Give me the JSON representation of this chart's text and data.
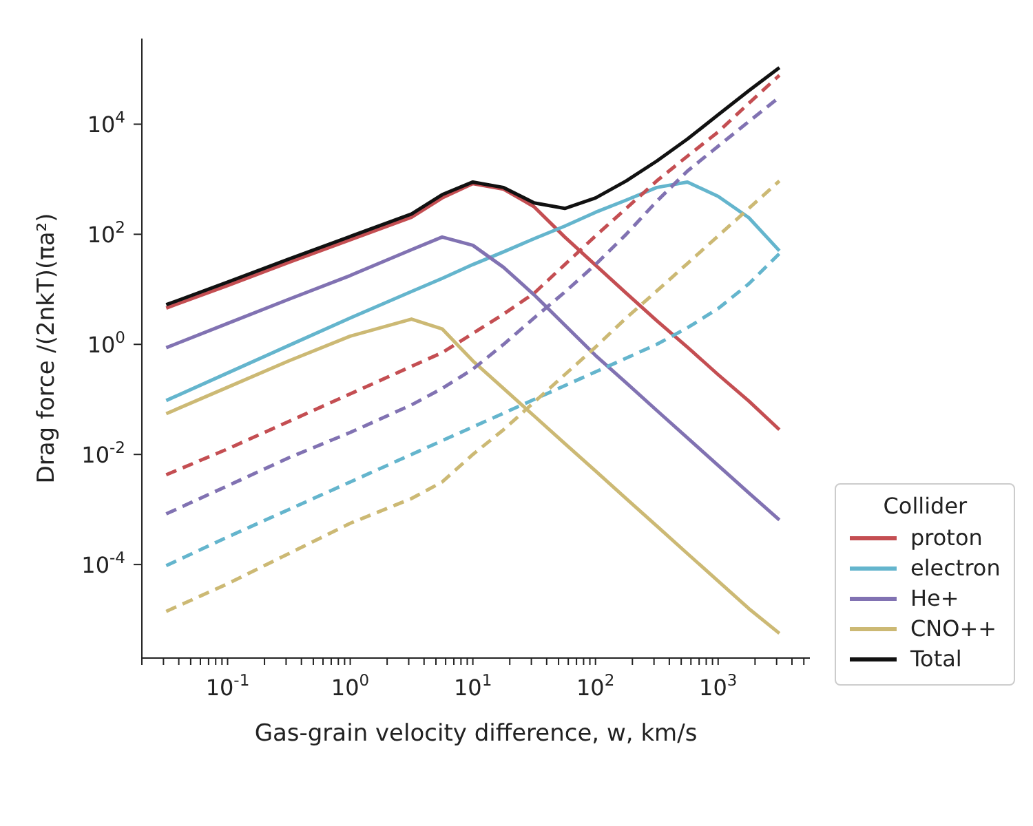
{
  "chart_data": {
    "type": "line",
    "xlabel": "Gas-grain velocity difference, w, km/s",
    "ylabel": "Drag force /(2nkT)(πa²)",
    "legend_title": "Collider",
    "legend": "right",
    "log": "xy",
    "grid": false,
    "marker": "none",
    "xlim": [
      0.02,
      5600
    ],
    "ylim": [
      2e-06,
      360000
    ],
    "xticks": [
      {
        "value": 0.02,
        "label": null
      },
      {
        "value": 0.03,
        "label": null
      },
      {
        "value": 0.04,
        "label": null
      },
      {
        "value": 0.05,
        "label": null
      },
      {
        "value": 0.06,
        "label": null
      },
      {
        "value": 0.07,
        "label": null
      },
      {
        "value": 0.08,
        "label": null
      },
      {
        "value": 0.09,
        "label": null
      },
      {
        "value": 0.1,
        "label": "10$^{-1}$"
      },
      {
        "value": 0.2,
        "label": null
      },
      {
        "value": 0.3,
        "label": null
      },
      {
        "value": 0.4,
        "label": null
      },
      {
        "value": 0.5,
        "label": null
      },
      {
        "value": 0.6,
        "label": null
      },
      {
        "value": 0.7,
        "label": null
      },
      {
        "value": 0.8,
        "label": null
      },
      {
        "value": 0.9,
        "label": null
      },
      {
        "value": 1,
        "label": "10$^{0}$"
      },
      {
        "value": 2,
        "label": null
      },
      {
        "value": 3,
        "label": null
      },
      {
        "value": 4,
        "label": null
      },
      {
        "value": 5,
        "label": null
      },
      {
        "value": 6,
        "label": null
      },
      {
        "value": 7,
        "label": null
      },
      {
        "value": 8,
        "label": null
      },
      {
        "value": 9,
        "label": null
      },
      {
        "value": 10,
        "label": "10$^{1}$"
      },
      {
        "value": 20,
        "label": null
      },
      {
        "value": 30,
        "label": null
      },
      {
        "value": 40,
        "label": null
      },
      {
        "value": 50,
        "label": null
      },
      {
        "value": 60,
        "label": null
      },
      {
        "value": 70,
        "label": null
      },
      {
        "value": 80,
        "label": null
      },
      {
        "value": 90,
        "label": null
      },
      {
        "value": 100,
        "label": "10$^{2}$"
      },
      {
        "value": 200,
        "label": null
      },
      {
        "value": 300,
        "label": null
      },
      {
        "value": 400,
        "label": null
      },
      {
        "value": 500,
        "label": null
      },
      {
        "value": 600,
        "label": null
      },
      {
        "value": 700,
        "label": null
      },
      {
        "value": 800,
        "label": null
      },
      {
        "value": 900,
        "label": null
      },
      {
        "value": 1000,
        "label": "10$^{3}$"
      },
      {
        "value": 2000,
        "label": null
      },
      {
        "value": 3000,
        "label": null
      },
      {
        "value": 4000,
        "label": null
      },
      {
        "value": 5000,
        "label": null
      }
    ],
    "yticks": [
      {
        "value": 0.0001,
        "label": "10$^{-4}$"
      },
      {
        "value": 0.01,
        "label": "10$^{-2}$"
      },
      {
        "value": 1,
        "label": "10$^{0}$"
      },
      {
        "value": 100,
        "label": "10$^{2}$"
      },
      {
        "value": 10000,
        "label": "10$^{4}$"
      }
    ],
    "x": [
      0.0316,
      0.1,
      0.316,
      1,
      3.16,
      5.62,
      10,
      17.8,
      31.6,
      56.2,
      100,
      178,
      316,
      562,
      1000,
      1780,
      3160
    ],
    "series": [
      {
        "name": "proton",
        "color": "#c44e52",
        "line_style": "solid",
        "values": [
          4.57,
          11.7,
          30.9,
          79.4,
          204,
          457,
          832,
          661,
          316,
          89.1,
          27.5,
          8.51,
          2.69,
          0.891,
          0.282,
          0.0933,
          0.0282
        ]
      },
      {
        "name": "electron",
        "color": "#64b5cd",
        "line_style": "solid",
        "values": [
          0.0955,
          0.302,
          0.955,
          3.02,
          9.12,
          15.8,
          28.2,
          47.9,
          83.2,
          141,
          251,
          417,
          708,
          891,
          490,
          200,
          50.1
        ]
      },
      {
        "name": "He+",
        "color": "#8172b2",
        "line_style": "solid",
        "values": [
          0.871,
          2.4,
          6.61,
          17.8,
          52.5,
          89.1,
          63.1,
          25.1,
          7.94,
          2.24,
          0.631,
          0.2,
          0.0631,
          0.02,
          0.00631,
          0.002,
          0.000646
        ]
      },
      {
        "name": "CNO++",
        "color": "#ccb974",
        "line_style": "solid",
        "values": [
          0.055,
          0.166,
          0.501,
          1.41,
          2.88,
          1.91,
          0.501,
          0.158,
          0.0501,
          0.0158,
          0.00501,
          0.00158,
          0.000501,
          0.000158,
          5.01e-05,
          1.58e-05,
          5.62e-06
        ]
      },
      {
        "name": "Total",
        "color": "#111111",
        "line_style": "solid",
        "values": [
          5.25,
          13.5,
          35.5,
          91.2,
          234,
          525,
          891,
          708,
          372,
          295,
          457,
          933,
          2140,
          5370,
          14800,
          40700,
          107000
        ]
      },
      {
        "color": "#c44e52",
        "line_style": "dashed",
        "values": [
          0.00427,
          0.0126,
          0.0398,
          0.126,
          0.398,
          0.708,
          1.58,
          3.55,
          8.51,
          28.2,
          93.3,
          295,
          933,
          2630,
          7240,
          24000,
          77600
        ]
      },
      {
        "color": "#64b5cd",
        "line_style": "dashed",
        "values": [
          9.55e-05,
          0.000316,
          0.001,
          0.00316,
          0.01,
          0.0178,
          0.0316,
          0.0562,
          0.1,
          0.178,
          0.316,
          0.562,
          1.0,
          2.0,
          4.47,
          12.6,
          44.7
        ]
      },
      {
        "color": "#8172b2",
        "line_style": "dashed",
        "values": [
          0.000832,
          0.00269,
          0.00871,
          0.0251,
          0.0794,
          0.158,
          0.355,
          1.0,
          3.02,
          8.91,
          28.2,
          100,
          398,
          1410,
          3980,
          11200,
          30900
        ]
      },
      {
        "color": "#ccb974",
        "line_style": "dashed",
        "values": [
          1.41e-05,
          4.47e-05,
          0.000158,
          0.000562,
          0.00158,
          0.00316,
          0.01,
          0.0282,
          0.0891,
          0.282,
          0.891,
          3.02,
          9.33,
          29.5,
          93.3,
          295,
          933
        ]
      }
    ]
  }
}
